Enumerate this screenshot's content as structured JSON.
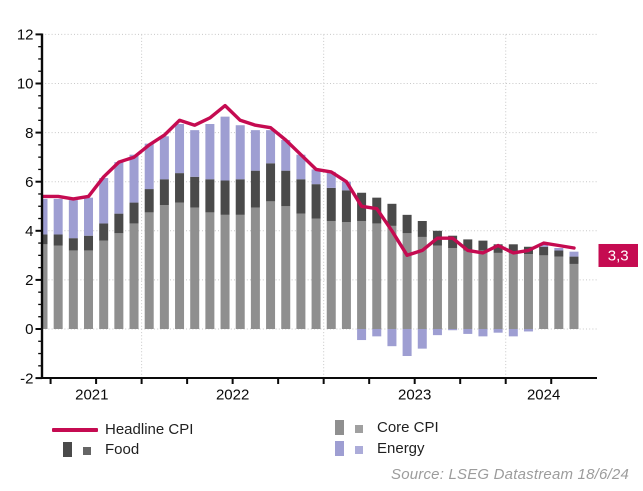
{
  "chart_data": {
    "type": "bar",
    "subtype": "stacked-bars-with-line",
    "title": "",
    "xlabel": "",
    "ylabel": "",
    "ylim": [
      -2,
      12
    ],
    "yticks": [
      -2,
      0,
      2,
      4,
      6,
      8,
      10,
      12
    ],
    "grid": "dotted",
    "legend_position": "bottom",
    "year_tick_labels": [
      "2021",
      "2022",
      "2023",
      "2024"
    ],
    "months": [
      "2021-06",
      "2021-07",
      "2021-08",
      "2021-09",
      "2021-10",
      "2021-11",
      "2021-12",
      "2022-01",
      "2022-02",
      "2022-03",
      "2022-04",
      "2022-05",
      "2022-06",
      "2022-07",
      "2022-08",
      "2022-09",
      "2022-10",
      "2022-11",
      "2022-12",
      "2023-01",
      "2023-02",
      "2023-03",
      "2023-04",
      "2023-05",
      "2023-06",
      "2023-07",
      "2023-08",
      "2023-09",
      "2023-10",
      "2023-11",
      "2023-12",
      "2024-01",
      "2024-02",
      "2024-03",
      "2024-04",
      "2024-05"
    ],
    "series": [
      {
        "name": "Headline CPI",
        "type": "line",
        "color": "#c50b51",
        "values": [
          5.4,
          5.4,
          5.3,
          5.4,
          6.2,
          6.8,
          7.0,
          7.5,
          7.9,
          8.5,
          8.3,
          8.6,
          9.1,
          8.5,
          8.3,
          8.2,
          7.7,
          7.1,
          6.5,
          6.4,
          6.0,
          5.0,
          4.9,
          4.0,
          3.0,
          3.2,
          3.7,
          3.7,
          3.2,
          3.1,
          3.4,
          3.1,
          3.2,
          3.5,
          3.4,
          3.3
        ]
      },
      {
        "name": "Core CPI",
        "type": "bar",
        "color": "#8f8f8f",
        "values": [
          3.45,
          3.4,
          3.2,
          3.2,
          3.6,
          3.9,
          4.3,
          4.75,
          5.05,
          5.15,
          4.95,
          4.75,
          4.65,
          4.65,
          4.95,
          5.2,
          5.0,
          4.7,
          4.5,
          4.4,
          4.35,
          4.4,
          4.3,
          4.2,
          3.9,
          3.75,
          3.4,
          3.3,
          3.2,
          3.2,
          3.1,
          3.1,
          3.05,
          3.0,
          2.95,
          2.65
        ]
      },
      {
        "name": "Food",
        "type": "bar",
        "color": "#4a4a4a",
        "values": [
          0.4,
          0.45,
          0.5,
          0.6,
          0.7,
          0.8,
          0.85,
          0.95,
          1.05,
          1.2,
          1.25,
          1.35,
          1.4,
          1.45,
          1.5,
          1.55,
          1.45,
          1.4,
          1.4,
          1.35,
          1.3,
          1.15,
          1.05,
          0.9,
          0.75,
          0.65,
          0.6,
          0.5,
          0.45,
          0.4,
          0.35,
          0.35,
          0.3,
          0.35,
          0.25,
          0.3
        ]
      },
      {
        "name": "Energy",
        "type": "bar",
        "color": "#9e9ed2",
        "values": [
          1.45,
          1.45,
          1.55,
          1.55,
          1.85,
          2.1,
          1.95,
          1.85,
          1.75,
          2.0,
          1.9,
          2.25,
          2.6,
          2.2,
          1.65,
          1.35,
          1.25,
          1.0,
          0.6,
          0.65,
          0.35,
          -0.45,
          -0.3,
          -0.7,
          -1.1,
          -0.8,
          -0.25,
          -0.05,
          -0.2,
          -0.3,
          -0.15,
          -0.3,
          -0.1,
          0.1,
          0.1,
          0.2
        ]
      }
    ],
    "end_label": {
      "text": "3,3",
      "box_color": "#c50b51",
      "text_color": "#ffffff"
    }
  },
  "legend": {
    "items": [
      {
        "label": "Headline CPI",
        "swatch": "line",
        "color": "#c50b51"
      },
      {
        "label": "Food",
        "swatch": "bars",
        "color": "#4a4a4a"
      },
      {
        "label": "Core CPI",
        "swatch": "bars",
        "color": "#8f8f8f"
      },
      {
        "label": "Energy",
        "swatch": "bars",
        "color": "#9e9ed2"
      }
    ]
  },
  "source": "Source: LSEG Datastream 18/6/24",
  "colors": {
    "axis": "#0a0a0a",
    "gridline": "#c8c8c8",
    "tick_label": "#0a0a0a",
    "background": "#ffffff"
  }
}
